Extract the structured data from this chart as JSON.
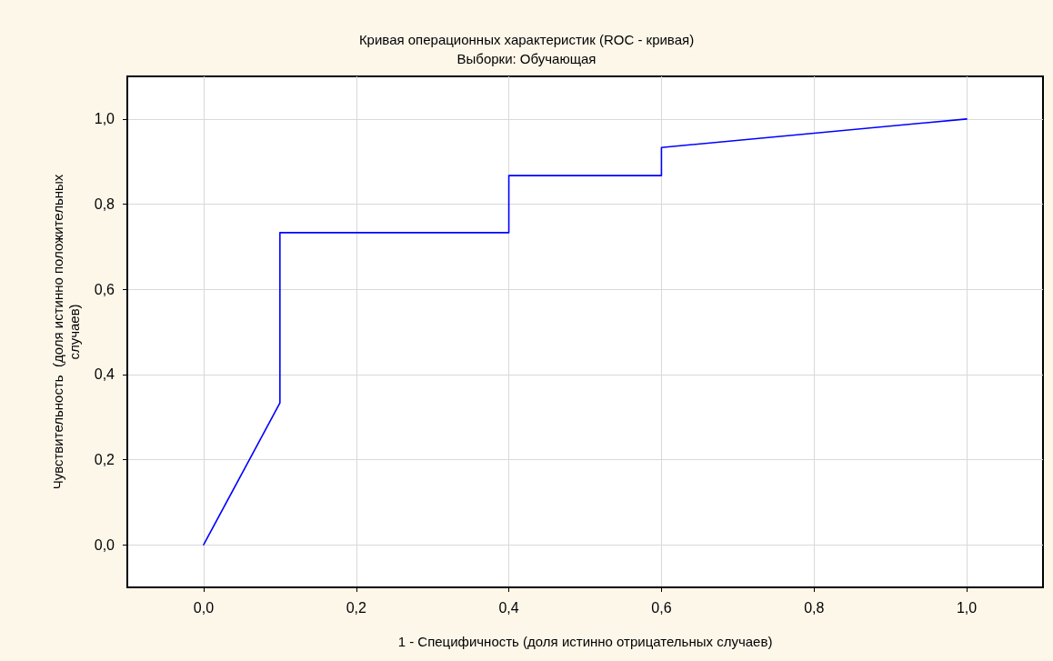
{
  "chart_data": {
    "type": "line",
    "title": "Кривая операционных характеристик (ROC - кривая)",
    "subtitle": "Выборки: Обучающая",
    "xlabel": "1 - Специфичность (доля истинно отрицательных случаев)",
    "ylabel": "Чувствительность  (доля истинно положительных случаев)",
    "x": [
      0,
      0.1,
      0.1,
      0.4,
      0.4,
      0.6,
      0.6,
      1
    ],
    "series": [
      {
        "color": "#0000ff",
        "values": [
          0,
          0.333,
          0.733,
          0.733,
          0.867,
          0.867,
          0.933,
          1
        ]
      }
    ],
    "xlim": [
      -0.1,
      1.1
    ],
    "ylim": [
      -0.1,
      1.1
    ],
    "xticks": [
      {
        "value": 0,
        "label": "0,0"
      },
      {
        "value": 0.2,
        "label": "0,2"
      },
      {
        "value": 0.4,
        "label": "0,4"
      },
      {
        "value": 0.6,
        "label": "0,6"
      },
      {
        "value": 0.8,
        "label": "0,8"
      },
      {
        "value": 1,
        "label": "1,0"
      }
    ],
    "yticks": [
      {
        "value": 0,
        "label": "0,0"
      },
      {
        "value": 0.2,
        "label": "0,2"
      },
      {
        "value": 0.4,
        "label": "0,4"
      },
      {
        "value": 0.6,
        "label": "0,6"
      },
      {
        "value": 0.8,
        "label": "0,8"
      },
      {
        "value": 1,
        "label": "1,0"
      }
    ],
    "grid": true,
    "marker": "none",
    "line_style": "solid"
  }
}
